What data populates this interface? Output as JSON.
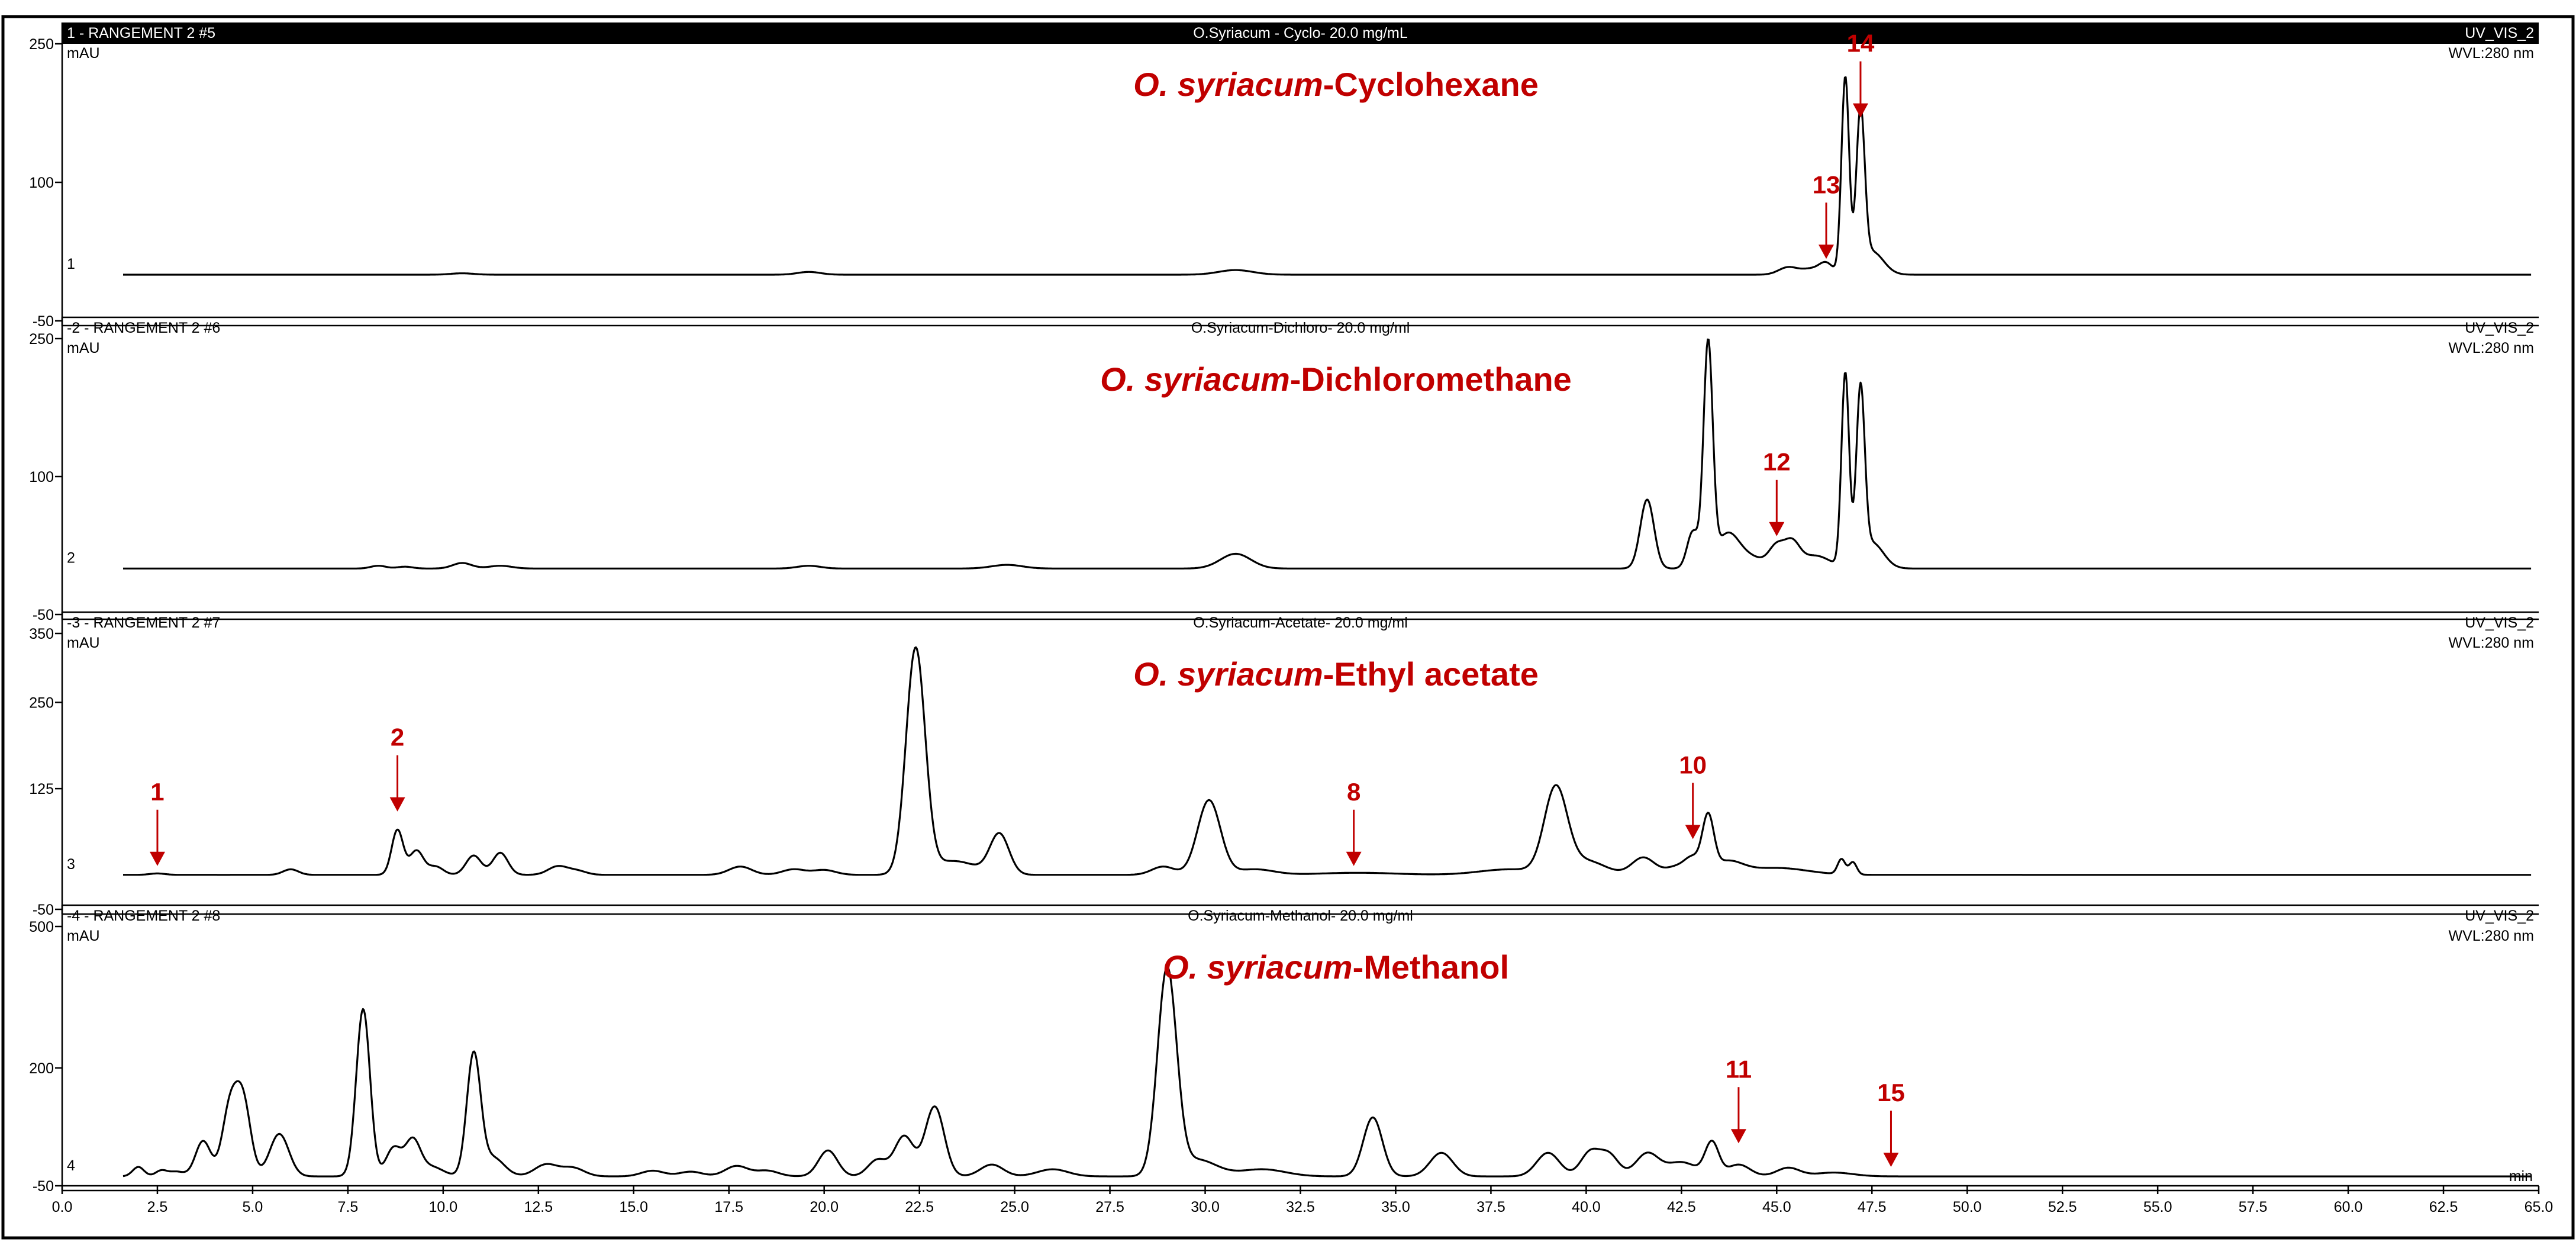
{
  "colors": {
    "annotation": "#C00000",
    "trace": "#000000",
    "header_bar": "#000000"
  },
  "chart_data": [
    {
      "type": "line",
      "header_left": "1 - RANGEMENT 2 #5",
      "header_center": "O.Syriacum - Cyclo- 20.0  mg/mL",
      "header_right": "UV_VIS_2",
      "title_italic": "O. syriacum",
      "title_rest": "-Cyclohexane",
      "yunit": "mAU",
      "wavelength": "WVL:280 nm",
      "trace_number": "1",
      "ylim": [
        -50,
        250
      ],
      "yticks": [
        "250",
        "100",
        "-50"
      ],
      "ytick_values": [
        250,
        100,
        -50
      ],
      "baseline": 0,
      "peaks": [
        [
          10.5,
          1.5,
          0.3
        ],
        [
          19.6,
          3,
          0.3
        ],
        [
          30.8,
          5,
          0.45
        ],
        [
          45.3,
          8,
          0.25
        ],
        [
          45.9,
          6,
          0.25
        ],
        [
          46.3,
          12,
          0.18
        ],
        [
          46.8,
          213,
          0.1
        ],
        [
          47.2,
          168,
          0.11
        ],
        [
          47.5,
          25,
          0.3
        ]
      ],
      "annotations": [
        {
          "label": "14",
          "x": 47.2,
          "y": 165
        },
        {
          "label": "13",
          "x": 46.3,
          "y": 12
        }
      ]
    },
    {
      "type": "line",
      "header_left": "-2 - RANGEMENT 2 #6",
      "header_center": "O.Syriacum-Dichloro- 20.0 mg/ml",
      "header_right": "UV_VIS_2",
      "title_italic": "O. syriacum",
      "title_rest": "-Dichloromethane",
      "yunit": "mAU",
      "wavelength": "WVL:280 nm",
      "trace_number": "2",
      "ylim": [
        -50,
        250
      ],
      "yticks": [
        "250",
        "100",
        "-50"
      ],
      "ytick_values": [
        250,
        100,
        -50
      ],
      "baseline": 0,
      "peaks": [
        [
          8.3,
          3,
          0.2
        ],
        [
          9.0,
          2,
          0.2
        ],
        [
          10.5,
          6,
          0.25
        ],
        [
          11.5,
          3,
          0.3
        ],
        [
          19.6,
          3,
          0.3
        ],
        [
          24.8,
          4,
          0.4
        ],
        [
          30.8,
          16,
          0.4
        ],
        [
          41.6,
          75,
          0.18
        ],
        [
          42.8,
          40,
          0.15
        ],
        [
          43.2,
          240,
          0.12
        ],
        [
          43.7,
          35,
          0.3
        ],
        [
          44.3,
          12,
          0.4
        ],
        [
          45.0,
          22,
          0.2
        ],
        [
          45.4,
          25,
          0.2
        ],
        [
          46.0,
          14,
          0.4
        ],
        [
          46.8,
          210,
          0.1
        ],
        [
          47.2,
          185,
          0.11
        ],
        [
          47.5,
          28,
          0.3
        ]
      ],
      "annotations": [
        {
          "label": "12",
          "x": 45.0,
          "y": 30
        }
      ]
    },
    {
      "type": "line",
      "header_left": "-3 - RANGEMENT 2 #7",
      "header_center": "O.Syriacum-Acetate- 20.0 mg/ml",
      "header_right": "UV_VIS_2",
      "title_italic": "O. syriacum",
      "title_rest": "-Ethyl acetate",
      "yunit": "mAU",
      "wavelength": "WVL:280 nm",
      "trace_number": "3",
      "ylim": [
        -50,
        350
      ],
      "yticks": [
        "350",
        "250",
        "125",
        "-50"
      ],
      "ytick_values": [
        350,
        250,
        125,
        -50
      ],
      "baseline": 0,
      "peaks": [
        [
          2.5,
          2,
          0.2
        ],
        [
          6.0,
          8,
          0.2
        ],
        [
          8.8,
          65,
          0.15
        ],
        [
          9.3,
          35,
          0.18
        ],
        [
          9.8,
          12,
          0.2
        ],
        [
          10.8,
          28,
          0.2
        ],
        [
          11.5,
          32,
          0.2
        ],
        [
          13.0,
          12,
          0.25
        ],
        [
          13.5,
          6,
          0.25
        ],
        [
          17.8,
          12,
          0.3
        ],
        [
          19.2,
          8,
          0.3
        ],
        [
          20.0,
          7,
          0.3
        ],
        [
          22.4,
          325,
          0.25
        ],
        [
          23.4,
          20,
          0.6
        ],
        [
          24.6,
          58,
          0.25
        ],
        [
          28.9,
          12,
          0.3
        ],
        [
          30.1,
          108,
          0.3
        ],
        [
          31.3,
          8,
          0.5
        ],
        [
          34.0,
          3,
          1.0
        ],
        [
          38.0,
          8,
          0.8
        ],
        [
          39.2,
          122,
          0.3
        ],
        [
          40.0,
          20,
          0.5
        ],
        [
          41.5,
          25,
          0.3
        ],
        [
          42.4,
          12,
          0.3
        ],
        [
          42.8,
          20,
          0.2
        ],
        [
          43.2,
          78,
          0.15
        ],
        [
          43.7,
          18,
          0.4
        ],
        [
          45.0,
          10,
          0.8
        ],
        [
          46.7,
          22,
          0.1
        ],
        [
          47.0,
          18,
          0.1
        ]
      ],
      "annotations": [
        {
          "label": "1",
          "x": 2.5,
          "y": 6
        },
        {
          "label": "2",
          "x": 8.8,
          "y": 85
        },
        {
          "label": "8",
          "x": 33.9,
          "y": 6
        },
        {
          "label": "10",
          "x": 42.8,
          "y": 45
        }
      ]
    },
    {
      "type": "line",
      "header_left": "-4 - RANGEMENT 2 #8",
      "header_center": "O.Syriacum-Methanol- 20.0 mg/ml",
      "header_right": "UV_VIS_2",
      "title_italic": "O. syriacum",
      "title_rest": "-Methanol",
      "yunit": "mAU",
      "wavelength": "WVL:280 nm",
      "trace_number": "4",
      "ylim": [
        -50,
        500
      ],
      "yticks": [
        "500",
        "200",
        "-50"
      ],
      "ytick_values": [
        500,
        200,
        -50
      ],
      "baseline": -30,
      "peaks": [
        [
          2.0,
          20,
          0.15
        ],
        [
          2.6,
          12,
          0.15
        ],
        [
          3.0,
          10,
          0.2
        ],
        [
          3.7,
          75,
          0.2
        ],
        [
          4.4,
          140,
          0.2
        ],
        [
          4.75,
          155,
          0.2
        ],
        [
          5.7,
          90,
          0.25
        ],
        [
          7.9,
          355,
          0.18
        ],
        [
          8.7,
          60,
          0.2
        ],
        [
          9.2,
          75,
          0.2
        ],
        [
          9.7,
          20,
          0.3
        ],
        [
          10.8,
          255,
          0.18
        ],
        [
          11.3,
          40,
          0.3
        ],
        [
          12.7,
          25,
          0.3
        ],
        [
          13.4,
          18,
          0.3
        ],
        [
          15.5,
          12,
          0.3
        ],
        [
          16.5,
          10,
          0.3
        ],
        [
          17.7,
          22,
          0.3
        ],
        [
          18.5,
          12,
          0.3
        ],
        [
          20.1,
          55,
          0.25
        ],
        [
          21.4,
          35,
          0.25
        ],
        [
          22.1,
          85,
          0.25
        ],
        [
          22.9,
          148,
          0.25
        ],
        [
          24.4,
          25,
          0.3
        ],
        [
          26.0,
          15,
          0.4
        ],
        [
          29.0,
          435,
          0.25
        ],
        [
          29.8,
          35,
          0.5
        ],
        [
          31.5,
          15,
          0.6
        ],
        [
          34.4,
          125,
          0.25
        ],
        [
          36.2,
          50,
          0.3
        ],
        [
          39.0,
          50,
          0.3
        ],
        [
          40.1,
          50,
          0.25
        ],
        [
          40.6,
          45,
          0.25
        ],
        [
          41.6,
          48,
          0.3
        ],
        [
          42.5,
          30,
          0.4
        ],
        [
          43.3,
          70,
          0.18
        ],
        [
          44.0,
          25,
          0.3
        ],
        [
          45.3,
          18,
          0.3
        ],
        [
          46.5,
          8,
          0.5
        ]
      ],
      "annotations": [
        {
          "label": "11",
          "x": 44.0,
          "y": 30
        },
        {
          "label": "15",
          "x": 48.0,
          "y": -20
        }
      ]
    }
  ],
  "x_axis": {
    "label": "min",
    "range": [
      0,
      65
    ],
    "ticks": [
      "0.0",
      "2.5",
      "5.0",
      "7.5",
      "10.0",
      "12.5",
      "15.0",
      "17.5",
      "20.0",
      "22.5",
      "25.0",
      "27.5",
      "30.0",
      "32.5",
      "35.0",
      "37.5",
      "40.0",
      "42.5",
      "45.0",
      "47.5",
      "50.0",
      "52.5",
      "55.0",
      "57.5",
      "60.0",
      "62.5",
      "65.0"
    ],
    "tick_values": [
      0,
      2.5,
      5,
      7.5,
      10,
      12.5,
      15,
      17.5,
      20,
      22.5,
      25,
      27.5,
      30,
      32.5,
      35,
      37.5,
      40,
      42.5,
      45,
      47.5,
      50,
      52.5,
      55,
      57.5,
      60,
      62.5,
      65
    ]
  }
}
